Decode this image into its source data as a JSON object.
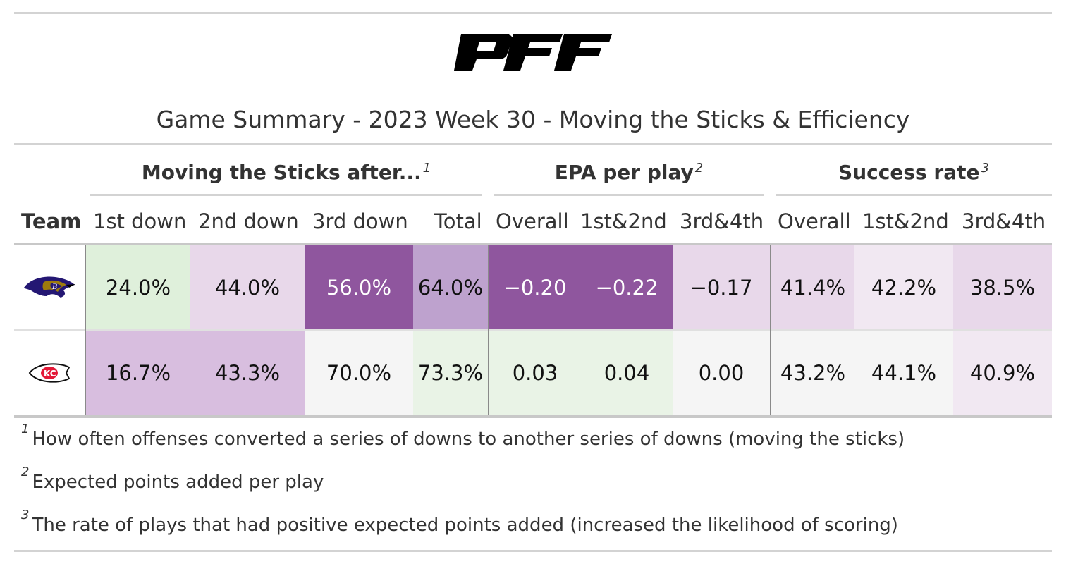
{
  "brand": {
    "logo_text": "PFF"
  },
  "title": "Game Summary - 2023 Week 30 - Moving the Sticks & Efficiency",
  "spanners": [
    {
      "label": "Moving the Sticks after...",
      "note": "1"
    },
    {
      "label": "EPA per play",
      "note": "2"
    },
    {
      "label": "Success rate",
      "note": "3"
    }
  ],
  "columns": [
    "Team",
    "1st down",
    "2nd down",
    "3rd down",
    "Total",
    "Overall",
    "1st&2nd",
    "3rd&4th",
    "Overall",
    "1st&2nd",
    "3rd&4th"
  ],
  "chart_data": {
    "type": "table",
    "title": "Game Summary - 2023 Week 30 - Moving the Sticks & Efficiency",
    "column_groups": [
      {
        "name": "Moving the Sticks after...",
        "columns": [
          "1st down",
          "2nd down",
          "3rd down",
          "Total"
        ]
      },
      {
        "name": "EPA per play",
        "columns": [
          "Overall",
          "1st&2nd",
          "3rd&4th"
        ]
      },
      {
        "name": "Success rate",
        "columns": [
          "Overall",
          "1st&2nd",
          "3rd&4th"
        ]
      }
    ],
    "rows": [
      {
        "team": "ravens-logo",
        "cells": [
          {
            "text": "24.0%",
            "value": 24.0,
            "bg": "#dff0db",
            "fg": "#111111"
          },
          {
            "text": "44.0%",
            "value": 44.0,
            "bg": "#e8d8ea",
            "fg": "#111111"
          },
          {
            "text": "56.0%",
            "value": 56.0,
            "bg": "#8f569e",
            "fg": "#ffffff"
          },
          {
            "text": "64.0%",
            "value": 64.0,
            "bg": "#bea2ce",
            "fg": "#111111"
          },
          {
            "text": "−0.20",
            "value": -0.2,
            "bg": "#8f569e",
            "fg": "#ffffff"
          },
          {
            "text": "−0.22",
            "value": -0.22,
            "bg": "#8f569e",
            "fg": "#ffffff"
          },
          {
            "text": "−0.17",
            "value": -0.17,
            "bg": "#e8d8ea",
            "fg": "#111111"
          },
          {
            "text": "41.4%",
            "value": 41.4,
            "bg": "#e8d8ea",
            "fg": "#111111"
          },
          {
            "text": "42.2%",
            "value": 42.2,
            "bg": "#f1e8f2",
            "fg": "#111111"
          },
          {
            "text": "38.5%",
            "value": 38.5,
            "bg": "#e8d8ea",
            "fg": "#111111"
          }
        ]
      },
      {
        "team": "chiefs-logo",
        "cells": [
          {
            "text": "16.7%",
            "value": 16.7,
            "bg": "#d8bedf",
            "fg": "#111111"
          },
          {
            "text": "43.3%",
            "value": 43.3,
            "bg": "#d8bedf",
            "fg": "#111111"
          },
          {
            "text": "70.0%",
            "value": 70.0,
            "bg": "#f5f5f5",
            "fg": "#111111"
          },
          {
            "text": "73.3%",
            "value": 73.3,
            "bg": "#e9f3e6",
            "fg": "#111111"
          },
          {
            "text": "0.03",
            "value": 0.03,
            "bg": "#e9f3e6",
            "fg": "#111111"
          },
          {
            "text": "0.04",
            "value": 0.04,
            "bg": "#e9f3e6",
            "fg": "#111111"
          },
          {
            "text": "0.00",
            "value": 0.0,
            "bg": "#f5f5f5",
            "fg": "#111111"
          },
          {
            "text": "43.2%",
            "value": 43.2,
            "bg": "#f5f5f5",
            "fg": "#111111"
          },
          {
            "text": "44.1%",
            "value": 44.1,
            "bg": "#f5f5f5",
            "fg": "#111111"
          },
          {
            "text": "40.9%",
            "value": 40.9,
            "bg": "#f1e8f2",
            "fg": "#111111"
          }
        ]
      }
    ]
  },
  "footnotes": [
    {
      "mark": "1",
      "text": "How often offenses converted a series of downs to another series of downs (moving the sticks)"
    },
    {
      "mark": "2",
      "text": "Expected points added per play"
    },
    {
      "mark": "3",
      "text": "The rate of plays that had positive expected points added (increased the likelihood of scoring)"
    }
  ]
}
